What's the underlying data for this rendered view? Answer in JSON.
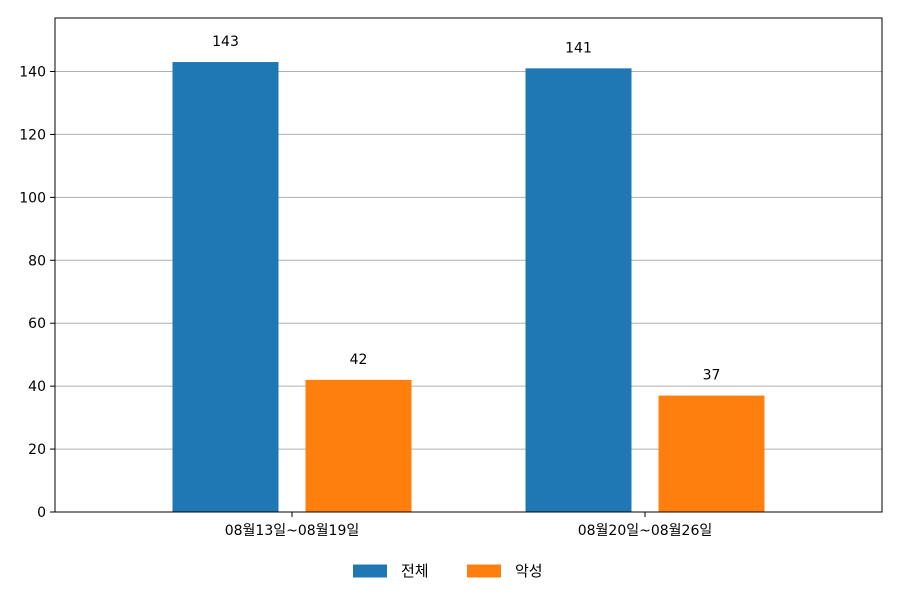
{
  "chart_data": {
    "type": "bar",
    "categories": [
      "08월13일~08월19일",
      "08월20일~08월26일"
    ],
    "series": [
      {
        "name": "전체",
        "values": [
          143,
          141
        ],
        "color": "#1f77b4"
      },
      {
        "name": "악성",
        "values": [
          42,
          37
        ],
        "color": "#ff7f0e"
      }
    ],
    "title": "",
    "xlabel": "",
    "ylabel": "",
    "ylim": [
      0,
      157
    ],
    "yticks": [
      0,
      20,
      40,
      60,
      80,
      100,
      120,
      140
    ],
    "grid": "y",
    "legend_position": "bottom-center",
    "show_value_labels": true
  }
}
